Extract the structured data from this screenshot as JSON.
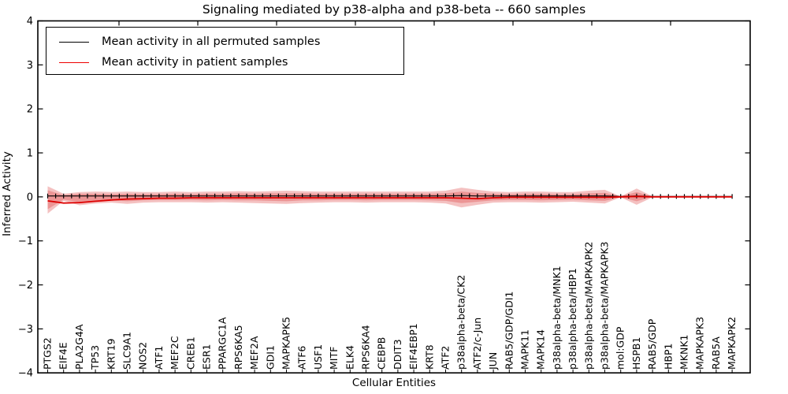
{
  "chart_data": {
    "type": "line",
    "title": "Signaling mediated by p38-alpha and p38-beta -- 660 samples",
    "xlabel": "Cellular Entities",
    "ylabel": "Inferred Activity",
    "ylim": [
      -4,
      4
    ],
    "ytick_values": [
      4,
      3,
      2,
      1,
      0,
      -1,
      -2,
      -3,
      -4
    ],
    "ytick_labels": [
      "4",
      "3",
      "2",
      "1",
      "0",
      "−1",
      "−2",
      "−3",
      "−4"
    ],
    "grid": false,
    "legend": {
      "position": "upper left",
      "entries": [
        {
          "label": "Mean activity in all permuted samples",
          "color": "#000000"
        },
        {
          "label": "Mean activity in patient samples",
          "color": "#ee0000"
        }
      ]
    },
    "categories": [
      "PTGS2",
      "EIF4E",
      "PLA2G4A",
      "TP53",
      "KRT19",
      "SLC9A1",
      "NOS2",
      "ATF1",
      "MEF2C",
      "CREB1",
      "ESR1",
      "PPARGC1A",
      "RPS6KA5",
      "MEF2A",
      "GDI1",
      "MAPKAPK5",
      "ATF6",
      "USF1",
      "MITF",
      "ELK4",
      "RPS6KA4",
      "CEBPB",
      "DDIT3",
      "EIF4EBP1",
      "KRT8",
      "ATF2",
      "p38alpha-beta/CK2",
      "ATF2/c-Jun",
      "JUN",
      "RAB5/GDP/GDI1",
      "MAPK11",
      "MAPK14",
      "p38alpha-beta/MNK1",
      "p38alpha-beta/HBP1",
      "p38alpha-beta/MAPKAPK2",
      "p38alpha-beta/MAPKAPK3",
      "mol:GDP",
      "HSPB1",
      "RAB5/GDP",
      "HBP1",
      "MKNK1",
      "MAPKAPK3",
      "RAB5A",
      "MAPKAPK2"
    ],
    "series": [
      {
        "name": "Mean activity in all permuted samples",
        "color": "#000000",
        "values": [
          0.02,
          0.02,
          0.02,
          0.02,
          0.02,
          0.02,
          0.02,
          0.02,
          0.02,
          0.02,
          0.02,
          0.02,
          0.02,
          0.02,
          0.02,
          0.02,
          0.02,
          0.02,
          0.02,
          0.02,
          0.02,
          0.02,
          0.02,
          0.02,
          0.02,
          0.02,
          0.03,
          0.02,
          0.02,
          0.02,
          0.02,
          0.02,
          0.02,
          0.02,
          0.02,
          0.02,
          0.01,
          0.02,
          0.01,
          0.01,
          0.01,
          0.01,
          0.01,
          0.01
        ]
      },
      {
        "name": "Mean activity in patient samples",
        "color": "#dd0000",
        "values": [
          -0.09,
          -0.14,
          -0.13,
          -0.1,
          -0.07,
          -0.05,
          -0.04,
          -0.03,
          -0.03,
          -0.02,
          -0.02,
          -0.02,
          -0.02,
          -0.02,
          -0.02,
          -0.02,
          -0.02,
          -0.02,
          -0.02,
          -0.02,
          -0.02,
          -0.02,
          -0.02,
          -0.02,
          -0.02,
          -0.02,
          -0.03,
          -0.04,
          -0.02,
          -0.01,
          -0.01,
          -0.01,
          -0.01,
          -0.01,
          -0.01,
          -0.01,
          0.0,
          0.01,
          0.0,
          0.0,
          0.0,
          0.0,
          0.0,
          0.0
        ]
      }
    ],
    "bands": [
      {
        "name": "outer-envelope",
        "color": "rgba(220,50,50,0.30)",
        "hi": [
          0.24,
          0.07,
          0.11,
          0.12,
          0.11,
          0.12,
          0.11,
          0.11,
          0.12,
          0.11,
          0.12,
          0.12,
          0.13,
          0.12,
          0.13,
          0.14,
          0.13,
          0.12,
          0.12,
          0.12,
          0.12,
          0.12,
          0.12,
          0.12,
          0.12,
          0.14,
          0.21,
          0.16,
          0.12,
          0.11,
          0.12,
          0.12,
          0.11,
          0.11,
          0.14,
          0.16,
          0.01,
          0.19,
          0.01,
          0.0,
          0.0,
          0.0,
          0.0,
          0.0
        ],
        "lo": [
          -0.38,
          -0.09,
          -0.19,
          -0.15,
          -0.13,
          -0.16,
          -0.13,
          -0.12,
          -0.12,
          -0.12,
          -0.13,
          -0.12,
          -0.13,
          -0.14,
          -0.15,
          -0.16,
          -0.14,
          -0.13,
          -0.12,
          -0.12,
          -0.13,
          -0.12,
          -0.12,
          -0.12,
          -0.13,
          -0.15,
          -0.24,
          -0.18,
          -0.13,
          -0.12,
          -0.12,
          -0.13,
          -0.12,
          -0.11,
          -0.13,
          -0.15,
          -0.01,
          -0.18,
          -0.01,
          0.0,
          0.0,
          0.0,
          0.0,
          0.0
        ]
      },
      {
        "name": "inner-envelope",
        "color": "rgba(220,50,50,0.30)",
        "hi": [
          0.15,
          0.04,
          0.07,
          0.07,
          0.06,
          0.07,
          0.06,
          0.06,
          0.07,
          0.06,
          0.07,
          0.07,
          0.08,
          0.07,
          0.08,
          0.08,
          0.08,
          0.07,
          0.07,
          0.07,
          0.07,
          0.07,
          0.07,
          0.07,
          0.07,
          0.08,
          0.12,
          0.09,
          0.07,
          0.06,
          0.07,
          0.07,
          0.06,
          0.06,
          0.08,
          0.09,
          0.01,
          0.11,
          0.0,
          0.0,
          0.0,
          0.0,
          0.0,
          0.0
        ],
        "lo": [
          -0.28,
          -0.06,
          -0.12,
          -0.09,
          -0.08,
          -0.1,
          -0.08,
          -0.07,
          -0.07,
          -0.07,
          -0.08,
          -0.07,
          -0.08,
          -0.08,
          -0.09,
          -0.1,
          -0.08,
          -0.08,
          -0.07,
          -0.07,
          -0.08,
          -0.07,
          -0.07,
          -0.07,
          -0.08,
          -0.09,
          -0.14,
          -0.11,
          -0.08,
          -0.07,
          -0.07,
          -0.08,
          -0.07,
          -0.06,
          -0.08,
          -0.09,
          -0.01,
          -0.1,
          0.0,
          0.0,
          0.0,
          0.0,
          0.0,
          0.0
        ]
      }
    ]
  }
}
